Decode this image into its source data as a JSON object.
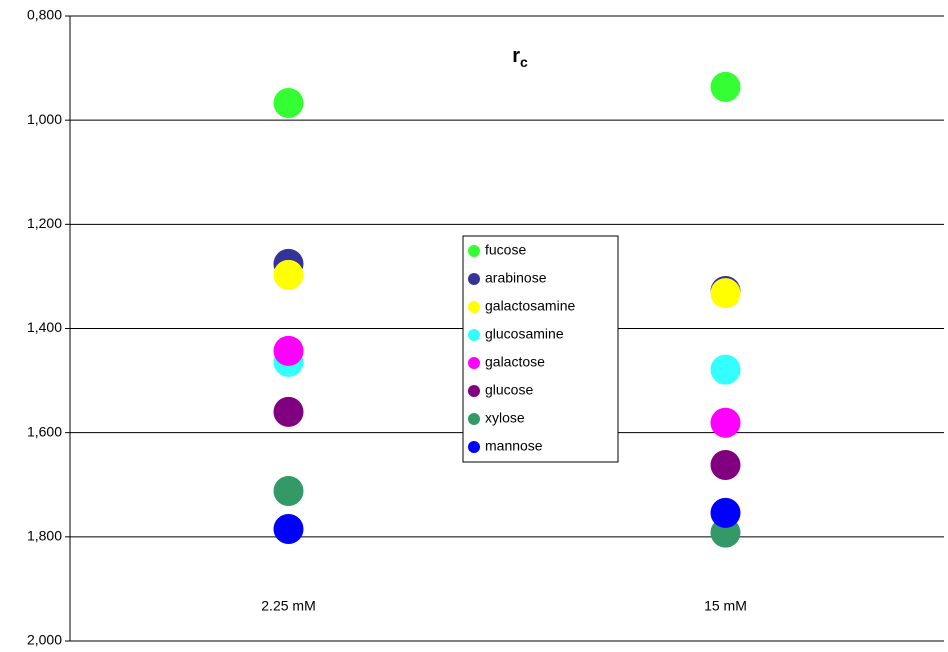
{
  "chart_data": {
    "type": "scatter",
    "title": "r",
    "title_subscript": "c",
    "categories": [
      "2.25 mM",
      "15 mM"
    ],
    "ylim": [
      0.8,
      2.0
    ],
    "y_reversed": true,
    "yticks": [
      {
        "value": 0.8,
        "label": "0,800"
      },
      {
        "value": 1.0,
        "label": "1,000"
      },
      {
        "value": 1.2,
        "label": "1,200"
      },
      {
        "value": 1.4,
        "label": "1,400"
      },
      {
        "value": 1.6,
        "label": "1,600"
      },
      {
        "value": 1.8,
        "label": "1,800"
      },
      {
        "value": 2.0,
        "label": "2,000"
      }
    ],
    "grid": true,
    "legend": "center",
    "series": [
      {
        "name": "fucose",
        "color": "#33ff33",
        "values": [
          0.967,
          0.936
        ]
      },
      {
        "name": "arabinose",
        "color": "#333399",
        "values": [
          1.276,
          1.328
        ]
      },
      {
        "name": "galactosamine",
        "color": "#ffff00",
        "values": [
          1.297,
          1.332
        ]
      },
      {
        "name": "glucosamine",
        "color": "#33ffff",
        "values": [
          1.464,
          1.479
        ]
      },
      {
        "name": "galactose",
        "color": "#ff00ff",
        "values": [
          1.443,
          1.581
        ]
      },
      {
        "name": "glucose",
        "color": "#800080",
        "values": [
          1.56,
          1.662
        ]
      },
      {
        "name": "xylose",
        "color": "#339966",
        "values": [
          1.712,
          1.792
        ]
      },
      {
        "name": "mannose",
        "color": "#0000ff",
        "values": [
          1.785,
          1.754
        ]
      }
    ]
  }
}
